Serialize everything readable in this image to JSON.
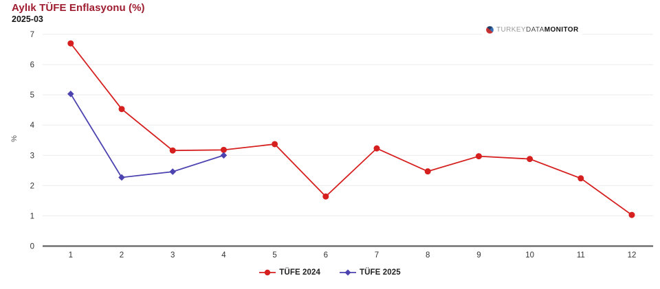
{
  "header": {
    "title": "Aylık TÜFE Enflasyonu (%)",
    "subtitle": "2025-03",
    "title_color": "#9e1c30"
  },
  "logo": {
    "part1": "TURKEY",
    "part2": "DATA",
    "part3": "MONITOR",
    "icon": "pie-globe-icon"
  },
  "colors": {
    "grid": "#ebebeb",
    "axis_line": "#707070",
    "tick_text": "#333333"
  },
  "chart_data": {
    "type": "line",
    "title": "Aylık TÜFE Enflasyonu (%)",
    "subtitle": "2025-03",
    "xlabel": "",
    "ylabel": "%",
    "x": [
      1,
      2,
      3,
      4,
      5,
      6,
      7,
      8,
      9,
      10,
      11,
      12
    ],
    "ylim": [
      0,
      7
    ],
    "yticks": [
      0,
      1,
      2,
      3,
      4,
      5,
      6,
      7
    ],
    "grid": "horizontal",
    "legend_position": "bottom",
    "series": [
      {
        "name": "TÜFE 2024",
        "color": "#d61f1f",
        "marker": "circle",
        "values": [
          6.7,
          4.53,
          3.16,
          3.18,
          3.37,
          1.64,
          3.23,
          2.47,
          2.97,
          2.88,
          2.24,
          1.03
        ]
      },
      {
        "name": "TÜFE 2025",
        "color": "#4c42b0",
        "marker": "diamond",
        "values": [
          5.03,
          2.27,
          2.46,
          3.0
        ]
      }
    ]
  }
}
